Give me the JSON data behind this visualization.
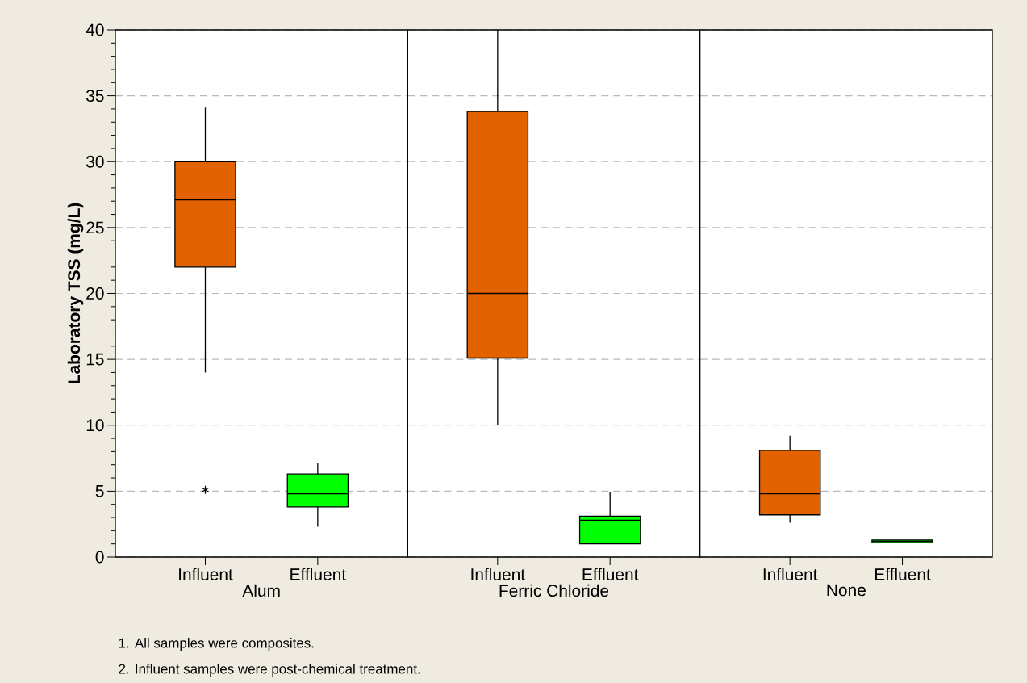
{
  "chart_data": [
    {
      "type": "box",
      "categories": [
        "Influent",
        "Effluent"
      ],
      "xlabel": "Alum",
      "ylabel": "Laboratory TSS (mg/L)",
      "ylim": [
        0,
        40
      ],
      "yticks": [
        0,
        5,
        10,
        15,
        20,
        25,
        30,
        35,
        40
      ],
      "grid": "y",
      "colors": [
        "#e36200",
        "#00ff00"
      ],
      "boxes": [
        {
          "low": 14.0,
          "q1": 22.0,
          "median": 27.1,
          "q3": 30.0,
          "high": 34.1,
          "outliers": [
            5.1
          ]
        },
        {
          "low": 2.3,
          "q1": 3.8,
          "median": 4.8,
          "q3": 6.3,
          "high": 7.1
        }
      ],
      "annotations": [
        "1. All samples were composites.",
        "2. Influent samples were post-chemical treatment."
      ]
    },
    {
      "type": "box",
      "categories": [
        "Influent",
        "Effluent"
      ],
      "xlabel": "Ferric Chloride",
      "ylim": [
        0,
        40
      ],
      "yticks": [
        0,
        5,
        10,
        15,
        20,
        25,
        30,
        35,
        40
      ],
      "grid": "y",
      "tick_labels": "x",
      "colors": [
        "#e36200",
        "#00ff00"
      ],
      "boxes": [
        {
          "low": 10.0,
          "q1": 15.1,
          "median": 20.0,
          "q3": 33.8,
          "high": 40.0
        },
        {
          "low": 1.0,
          "q1": 1.0,
          "median": 2.8,
          "q3": 3.1,
          "high": 4.9
        }
      ]
    },
    {
      "type": "box",
      "categories": [
        "Influent",
        "Effluent"
      ],
      "xlabel": "None",
      "ylim": [
        0,
        40
      ],
      "yticks": [
        0,
        5,
        10,
        15,
        20,
        25,
        30,
        35,
        40
      ],
      "grid": "y",
      "tick_labels": "x",
      "colors": [
        "#e36200",
        "#00ff00"
      ],
      "boxes": [
        {
          "low": 2.6,
          "q1": 3.2,
          "median": 4.8,
          "q3": 8.1,
          "high": 9.2
        },
        {
          "low": 1.1,
          "q1": 1.1,
          "median": 1.2,
          "q3": 1.3,
          "high": 1.3
        }
      ]
    }
  ]
}
